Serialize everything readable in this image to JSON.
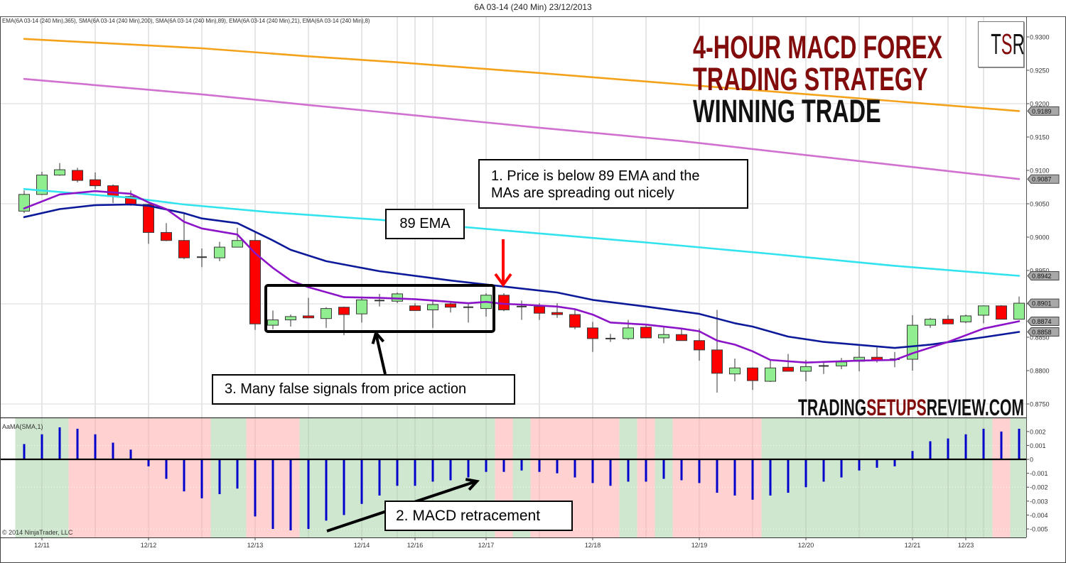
{
  "window": {
    "title": "6A 03-14 (240 Min)  23/12/2013"
  },
  "price_panel": {
    "indicator_label": "EMA(6A 03-14 (240 Min),365), SMA(6A 03-14 (240 Min),200), SMA(6A 03-14 (240 Min),89), EMA(6A 03-14 (240 Min),21), EMA(6A 03-14 (240 Min),8)"
  },
  "macd_panel": {
    "indicator_label": "AaMA(SMA,1)",
    "copyright": "© 2014 NinjaTrader, LLC"
  },
  "overlay": {
    "title_lines": [
      {
        "text": "4-HOUR MACD FOREX",
        "color": "#820C0C"
      },
      {
        "text": "TRADING STRATEGY",
        "color": "#820C0C"
      },
      {
        "text": "WINNING TRADE",
        "color": "#111111"
      }
    ],
    "logo": {
      "parts": [
        {
          "text": "T",
          "color": "#111111"
        },
        {
          "text": "S",
          "color": "#820C0C"
        },
        {
          "text": "R",
          "color": "#111111"
        }
      ]
    },
    "website": {
      "parts": [
        {
          "text": "TRADING",
          "color": "#111111"
        },
        {
          "text": "SETUPS",
          "color": "#820C0C"
        },
        {
          "text": "REVIEW.COM",
          "color": "#111111"
        }
      ]
    }
  },
  "annotations": {
    "note_1": {
      "lines": [
        "1. Price is below 89 EMA and the",
        "MAs are spreading out nicely"
      ]
    },
    "note_89ema": {
      "text": "89 EMA"
    },
    "note_3": {
      "text": "3. Many false signals from price action"
    },
    "note_2": {
      "text": "2. MACD retracement"
    }
  },
  "colors": {
    "candle_up": "#90EE90",
    "candle_down": "#FF0000",
    "candle_outline": "#3A3A3A",
    "wick": "#555555",
    "macd_bar": "#0000CC",
    "shade_up": "#CFE7CF",
    "shade_down": "#FFD1D1",
    "annotation_arrow_red": "#FF0000",
    "brand_red": "#820C0C",
    "badge_fill": "#A8A8A8"
  },
  "chart_data": [
    {
      "type": "candlestick",
      "title": "6A 03-14 (240 Min)  23/12/2013",
      "xlabel": "",
      "ylabel": "",
      "ylim": [
        0.87298,
        0.93298
      ],
      "y_ticks": [
        "0.9300",
        "0.9250",
        "0.9200",
        "0.9150",
        "0.9100",
        "0.9050",
        "0.9000",
        "0.8950",
        "0.8900",
        "0.8850",
        "0.8800",
        "0.8750"
      ],
      "grid_lines": [
        0.92,
        0.905,
        0.89,
        0.875
      ],
      "candles_format": "[open, high, low, close]",
      "candles": [
        [
          0.9039,
          0.907,
          0.9036,
          0.9064
        ],
        [
          0.9064,
          0.9098,
          0.9063,
          0.9093
        ],
        [
          0.9093,
          0.9111,
          0.9092,
          0.9101
        ],
        [
          0.91,
          0.9104,
          0.9082,
          0.9085
        ],
        [
          0.9086,
          0.9097,
          0.9072,
          0.9077
        ],
        [
          0.9077,
          0.9079,
          0.9051,
          0.9061
        ],
        [
          0.9061,
          0.907,
          0.9047,
          0.9049
        ],
        [
          0.9049,
          0.905,
          0.899,
          0.9007
        ],
        [
          0.9007,
          0.9021,
          0.8994,
          0.8995
        ],
        [
          0.8995,
          0.9035,
          0.8967,
          0.8969
        ],
        [
          0.897,
          0.8983,
          0.8955,
          0.897
        ],
        [
          0.8969,
          0.8993,
          0.8964,
          0.8985
        ],
        [
          0.8985,
          0.9014,
          0.8985,
          0.8995
        ],
        [
          0.8995,
          0.9007,
          0.8861,
          0.887
        ],
        [
          0.8868,
          0.889,
          0.8862,
          0.8876
        ],
        [
          0.8876,
          0.8884,
          0.8866,
          0.8881
        ],
        [
          0.8882,
          0.8909,
          0.8879,
          0.8879
        ],
        [
          0.8878,
          0.8895,
          0.8864,
          0.8893
        ],
        [
          0.8895,
          0.8896,
          0.8853,
          0.8884
        ],
        [
          0.8885,
          0.8911,
          0.8872,
          0.8906
        ],
        [
          0.8905,
          0.8915,
          0.8896,
          0.8905
        ],
        [
          0.8904,
          0.8917,
          0.8901,
          0.8915
        ],
        [
          0.8897,
          0.8901,
          0.889,
          0.889
        ],
        [
          0.8891,
          0.8906,
          0.8864,
          0.8899
        ],
        [
          0.89,
          0.8904,
          0.8887,
          0.8895
        ],
        [
          0.8895,
          0.8901,
          0.8872,
          0.8895
        ],
        [
          0.8893,
          0.8916,
          0.8881,
          0.8913
        ],
        [
          0.8913,
          0.8916,
          0.8889,
          0.8891
        ],
        [
          0.8896,
          0.8905,
          0.8876,
          0.8896
        ],
        [
          0.8896,
          0.8901,
          0.8876,
          0.8886
        ],
        [
          0.8887,
          0.8901,
          0.8879,
          0.8884
        ],
        [
          0.8884,
          0.8893,
          0.8862,
          0.8865
        ],
        [
          0.8864,
          0.8873,
          0.8828,
          0.8848
        ],
        [
          0.8848,
          0.8855,
          0.8843,
          0.8848
        ],
        [
          0.8848,
          0.8876,
          0.8846,
          0.8864
        ],
        [
          0.8865,
          0.887,
          0.8849,
          0.8849
        ],
        [
          0.8849,
          0.8865,
          0.8841,
          0.8854
        ],
        [
          0.8854,
          0.8864,
          0.8845,
          0.8845
        ],
        [
          0.8845,
          0.8863,
          0.8815,
          0.8831
        ],
        [
          0.8831,
          0.8891,
          0.8767,
          0.8796
        ],
        [
          0.8795,
          0.8818,
          0.8784,
          0.8804
        ],
        [
          0.8804,
          0.8805,
          0.8771,
          0.8785
        ],
        [
          0.8784,
          0.8816,
          0.8783,
          0.8804
        ],
        [
          0.8805,
          0.8825,
          0.8799,
          0.8799
        ],
        [
          0.8799,
          0.8816,
          0.8784,
          0.8806
        ],
        [
          0.8807,
          0.8814,
          0.8795,
          0.8807
        ],
        [
          0.8807,
          0.8819,
          0.8802,
          0.8813
        ],
        [
          0.8814,
          0.8837,
          0.8799,
          0.882
        ],
        [
          0.882,
          0.8835,
          0.8812,
          0.8816
        ],
        [
          0.8817,
          0.8828,
          0.8805,
          0.8817
        ],
        [
          0.8817,
          0.8883,
          0.88,
          0.8868
        ],
        [
          0.8868,
          0.8879,
          0.8864,
          0.8877
        ],
        [
          0.8877,
          0.8883,
          0.887,
          0.887
        ],
        [
          0.8873,
          0.8884,
          0.8871,
          0.8882
        ],
        [
          0.8883,
          0.8897,
          0.8871,
          0.8897
        ],
        [
          0.8897,
          0.8898,
          0.8877,
          0.8877
        ],
        [
          0.8877,
          0.8911,
          0.8877,
          0.8901
        ]
      ],
      "series": [
        {
          "name": "EMA(6A 03-14 (240 Min),365)",
          "color": "#F4A21C",
          "points": [
            [
              0,
              0.9297
            ],
            [
              10,
              0.9283
            ],
            [
              16,
              0.9271
            ],
            [
              21,
              0.9262
            ],
            [
              29,
              0.9246
            ],
            [
              37,
              0.9229
            ],
            [
              56,
              0.9189
            ]
          ]
        },
        {
          "name": "SMA(6A 03-14 (240 Min),200)",
          "color": "#D070D0",
          "points": [
            [
              0,
              0.9237
            ],
            [
              10,
              0.9214
            ],
            [
              16,
              0.9198
            ],
            [
              21,
              0.9185
            ],
            [
              29,
              0.9164
            ],
            [
              37,
              0.9144
            ],
            [
              56,
              0.9087
            ]
          ]
        },
        {
          "name": "SMA(6A 03-14 (240 Min),89)",
          "color": "#30E3EE",
          "points": [
            [
              0,
              0.9072
            ],
            [
              6,
              0.9059
            ],
            [
              9,
              0.9049
            ],
            [
              14,
              0.9037
            ],
            [
              20,
              0.9026
            ],
            [
              27,
              0.901
            ],
            [
              35,
              0.8992
            ],
            [
              42,
              0.8975
            ],
            [
              49,
              0.8957
            ],
            [
              56,
              0.8942
            ]
          ]
        },
        {
          "name": "EMA(6A 03-14 (240 Min),21)",
          "color": "#0C1A9A",
          "points": [
            [
              0,
              0.903
            ],
            [
              2,
              0.9042
            ],
            [
              4,
              0.9048
            ],
            [
              6,
              0.9049
            ],
            [
              7,
              0.9047
            ],
            [
              9,
              0.9036
            ],
            [
              10,
              0.9028
            ],
            [
              12,
              0.9021
            ],
            [
              14,
              0.8995
            ],
            [
              15,
              0.8981
            ],
            [
              17,
              0.8964
            ],
            [
              20,
              0.8949
            ],
            [
              24,
              0.8935
            ],
            [
              28,
              0.8923
            ],
            [
              30,
              0.8917
            ],
            [
              32,
              0.8906
            ],
            [
              35,
              0.8896
            ],
            [
              38,
              0.8885
            ],
            [
              40,
              0.8871
            ],
            [
              41,
              0.8866
            ],
            [
              43,
              0.8851
            ],
            [
              45,
              0.8843
            ],
            [
              49,
              0.8834
            ],
            [
              51,
              0.8839
            ],
            [
              54,
              0.885
            ],
            [
              56,
              0.8858
            ]
          ]
        },
        {
          "name": "EMA(6A 03-14 (240 Min),8)",
          "color": "#8C14C8",
          "points": [
            [
              0,
              0.9043
            ],
            [
              2,
              0.9064
            ],
            [
              4,
              0.9069
            ],
            [
              6,
              0.9065
            ],
            [
              7,
              0.9052
            ],
            [
              8,
              0.9042
            ],
            [
              9,
              0.9023
            ],
            [
              10,
              0.9013
            ],
            [
              12,
              0.9004
            ],
            [
              13,
              0.8976
            ],
            [
              14,
              0.8954
            ],
            [
              15,
              0.8935
            ],
            [
              16,
              0.8925
            ],
            [
              18,
              0.891
            ],
            [
              20,
              0.8909
            ],
            [
              22,
              0.8907
            ],
            [
              24,
              0.8903
            ],
            [
              25,
              0.8901
            ],
            [
              26,
              0.8903
            ],
            [
              27,
              0.89
            ],
            [
              28,
              0.8899
            ],
            [
              30,
              0.8896
            ],
            [
              31,
              0.8892
            ],
            [
              32,
              0.8884
            ],
            [
              33,
              0.8872
            ],
            [
              35,
              0.8869
            ],
            [
              37,
              0.8863
            ],
            [
              38,
              0.8859
            ],
            [
              39,
              0.8845
            ],
            [
              40,
              0.8839
            ],
            [
              41,
              0.8829
            ],
            [
              42,
              0.8816
            ],
            [
              44,
              0.8812
            ],
            [
              47,
              0.8815
            ],
            [
              49,
              0.8816
            ],
            [
              50,
              0.8826
            ],
            [
              52,
              0.8843
            ],
            [
              54,
              0.8863
            ],
            [
              56,
              0.8874
            ]
          ]
        }
      ],
      "last_value_badges": [
        "0.9189",
        "0.9087",
        "0.8942",
        "0.8901",
        "0.8874",
        "0.8858"
      ],
      "legend_position": "top-left text"
    },
    {
      "type": "bar",
      "title": "AaMA(SMA,1)",
      "xlabel": "",
      "ylabel": "",
      "ylim": [
        -0.00561,
        0.00296
      ],
      "y_ticks": [
        "0.002",
        "0.001",
        "0",
        "-0.001",
        "-0.002",
        "-0.003",
        "-0.004",
        "-0.005"
      ],
      "grid_lines": [
        0.001,
        -0.002,
        -0.005
      ],
      "values": [
        0.0011,
        0.0018,
        0.0023,
        0.0022,
        0.0018,
        0.0012,
        0.0007,
        -0.0005,
        -0.0014,
        -0.0023,
        -0.0028,
        -0.0025,
        -0.0021,
        -0.0041,
        -0.005,
        -0.0051,
        -0.005,
        -0.0044,
        -0.004,
        -0.0032,
        -0.0026,
        -0.0019,
        -0.0019,
        -0.0016,
        -0.0015,
        -0.0013,
        -0.0009,
        -0.0009,
        -0.0008,
        -0.0009,
        -0.001,
        -0.0013,
        -0.0017,
        -0.0019,
        -0.0016,
        -0.0016,
        -0.0014,
        -0.0015,
        -0.0017,
        -0.0024,
        -0.0026,
        -0.0029,
        -0.0026,
        -0.0024,
        -0.002,
        -0.0016,
        -0.0013,
        -0.0008,
        -0.0006,
        -0.0005,
        0.0006,
        0.0013,
        0.0015,
        0.0018,
        0.0022,
        0.002,
        0.0022
      ],
      "background_regions": [
        {
          "from": 0,
          "to": 2,
          "state": "up"
        },
        {
          "from": 3,
          "to": 10,
          "state": "down"
        },
        {
          "from": 11,
          "to": 12,
          "state": "up"
        },
        {
          "from": 13,
          "to": 15,
          "state": "down"
        },
        {
          "from": 16,
          "to": 26,
          "state": "up"
        },
        {
          "from": 27,
          "to": 27,
          "state": "down"
        },
        {
          "from": 28,
          "to": 28,
          "state": "up"
        },
        {
          "from": 29,
          "to": 33,
          "state": "down"
        },
        {
          "from": 34,
          "to": 34,
          "state": "up"
        },
        {
          "from": 35,
          "to": 35,
          "state": "down"
        },
        {
          "from": 36,
          "to": 36,
          "state": "up"
        },
        {
          "from": 37,
          "to": 41,
          "state": "down"
        },
        {
          "from": 42,
          "to": 54,
          "state": "up"
        },
        {
          "from": 55,
          "to": 55,
          "state": "down"
        },
        {
          "from": 56,
          "to": 56,
          "state": "up"
        }
      ],
      "x_ticks": [
        {
          "bar": 1,
          "label": "12/11"
        },
        {
          "bar": 7,
          "label": "12/12"
        },
        {
          "bar": 13,
          "label": "12/13"
        },
        {
          "bar": 19,
          "label": "12/14"
        },
        {
          "bar": 22,
          "label": "12/16"
        },
        {
          "bar": 26,
          "label": "12/17"
        },
        {
          "bar": 32,
          "label": "12/18"
        },
        {
          "bar": 38,
          "label": "12/19"
        },
        {
          "bar": 44,
          "label": "12/20"
        },
        {
          "bar": 50,
          "label": "12/21"
        },
        {
          "bar": 53,
          "label": "12/23"
        }
      ],
      "v_grid_bars": [
        1,
        4,
        7,
        10,
        13,
        16,
        19,
        21,
        22,
        23,
        26,
        29,
        32,
        35,
        38,
        41,
        44,
        47,
        50,
        52,
        53,
        54
      ]
    }
  ]
}
